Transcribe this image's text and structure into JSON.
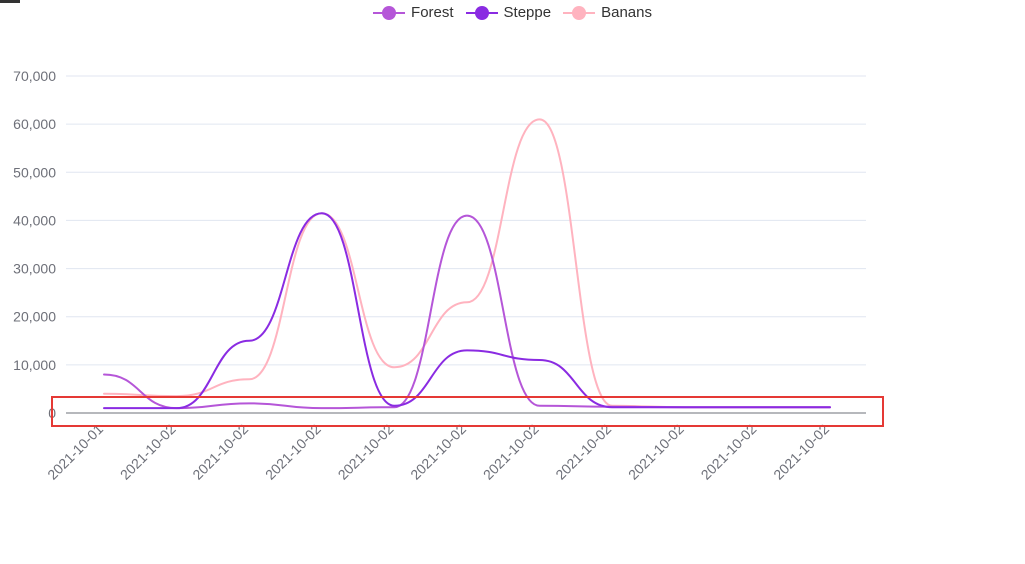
{
  "chart_data": {
    "type": "line",
    "smooth": true,
    "title": "",
    "xlabel": "",
    "ylabel": "",
    "categories": [
      "2021-10-01",
      "2021-10-02",
      "2021-10-02",
      "2021-10-02",
      "2021-10-02",
      "2021-10-02",
      "2021-10-02",
      "2021-10-02",
      "2021-10-02",
      "2021-10-02",
      "2021-10-02"
    ],
    "ylim": [
      0,
      70000
    ],
    "yticks": [
      0,
      10000,
      20000,
      30000,
      40000,
      50000,
      60000,
      70000
    ],
    "ytick_labels": [
      "0",
      "10,000",
      "20,000",
      "30,000",
      "40,000",
      "50,000",
      "60,000",
      "70,000"
    ],
    "grid": true,
    "legend_position": "top-center",
    "series": [
      {
        "name": "Forest",
        "color": "#b556d8",
        "values": [
          8000,
          1000,
          2000,
          1000,
          1200,
          41000,
          1500,
          1300,
          1200,
          1200,
          1200
        ]
      },
      {
        "name": "Steppe",
        "color": "#8a2be2",
        "values": [
          1000,
          1000,
          15000,
          41500,
          1500,
          13000,
          11000,
          1200,
          1200,
          1200,
          1200
        ]
      },
      {
        "name": "Banans",
        "color": "#ffb3bf",
        "values": [
          4000,
          3500,
          7000,
          41500,
          9500,
          23000,
          61000,
          1500,
          1200,
          1200,
          1200
        ]
      }
    ]
  }
}
